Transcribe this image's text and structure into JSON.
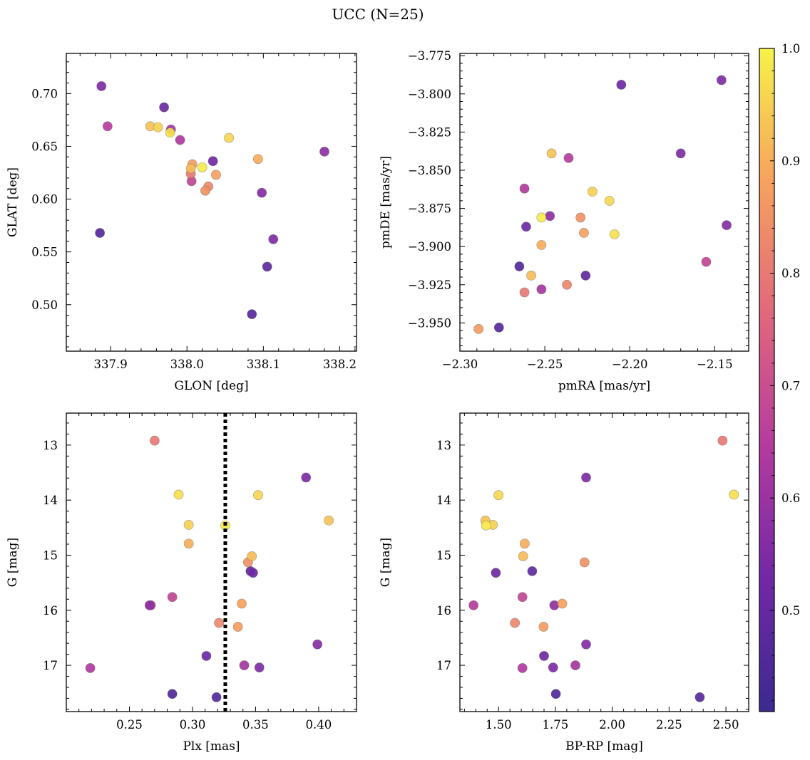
{
  "figure": {
    "title": "UCC (N=25)"
  },
  "colorbar": {
    "range": [
      0.41,
      1.0
    ],
    "ticks": [
      0.5,
      0.6,
      0.7,
      0.8,
      0.9,
      1.0
    ],
    "tick_labels": [
      "0.5",
      "0.6",
      "0.7",
      "0.8",
      "0.9",
      "1.0"
    ],
    "colormap": "plasma"
  },
  "stars": [
    {
      "glon": 337.888,
      "glat": 0.707,
      "pmra": -2.146,
      "pmde": -3.791,
      "plx": 0.39,
      "g": 13.59,
      "bprp": 1.885,
      "p": 0.55
    },
    {
      "glon": 337.896,
      "glat": 0.669,
      "pmra": -2.236,
      "pmde": -3.842,
      "plx": 0.267,
      "g": 15.91,
      "bprp": 1.39,
      "p": 0.65
    },
    {
      "glon": 337.97,
      "glat": 0.687,
      "pmra": -2.205,
      "pmde": -3.794,
      "plx": 0.311,
      "g": 16.83,
      "bprp": 1.7,
      "p": 0.52
    },
    {
      "glon": 337.886,
      "glat": 0.568,
      "pmra": -2.265,
      "pmde": -3.913,
      "plx": 0.284,
      "g": 17.52,
      "bprp": 1.752,
      "p": 0.46
    },
    {
      "glon": 338.085,
      "glat": 0.491,
      "pmra": -2.277,
      "pmde": -3.953,
      "plx": 0.319,
      "g": 17.58,
      "bprp": 2.385,
      "p": 0.47
    },
    {
      "glon": 338.105,
      "glat": 0.536,
      "pmra": -2.226,
      "pmde": -3.919,
      "plx": 0.346,
      "g": 15.29,
      "bprp": 1.648,
      "p": 0.49
    },
    {
      "glon": 338.034,
      "glat": 0.636,
      "pmra": -2.261,
      "pmde": -3.887,
      "plx": 0.348,
      "g": 15.32,
      "bprp": 1.488,
      "p": 0.52
    },
    {
      "glon": 338.098,
      "glat": 0.606,
      "pmra": -2.143,
      "pmde": -3.886,
      "plx": 0.399,
      "g": 16.62,
      "bprp": 1.885,
      "p": 0.56
    },
    {
      "glon": 338.113,
      "glat": 0.562,
      "pmra": -2.17,
      "pmde": -3.839,
      "plx": 0.353,
      "g": 17.04,
      "bprp": 1.74,
      "p": 0.55
    },
    {
      "glon": 338.18,
      "glat": 0.645,
      "pmra": -2.247,
      "pmde": -3.88,
      "plx": 0.266,
      "g": 15.91,
      "bprp": 1.745,
      "p": 0.58
    },
    {
      "glon": 337.979,
      "glat": 0.666,
      "pmra": -2.252,
      "pmde": -3.928,
      "plx": 0.341,
      "g": 17.0,
      "bprp": 1.838,
      "p": 0.62
    },
    {
      "glon": 337.991,
      "glat": 0.656,
      "pmra": -2.262,
      "pmde": -3.862,
      "plx": 0.219,
      "g": 17.05,
      "bprp": 1.605,
      "p": 0.64
    },
    {
      "glon": 338.006,
      "glat": 0.617,
      "pmra": -2.155,
      "pmde": -3.91,
      "plx": 0.284,
      "g": 15.76,
      "bprp": 1.605,
      "p": 0.68
    },
    {
      "glon": 338.005,
      "glat": 0.624,
      "pmra": -2.262,
      "pmde": -3.93,
      "plx": 0.27,
      "g": 12.92,
      "bprp": 2.485,
      "p": 0.8
    },
    {
      "glon": 338.028,
      "glat": 0.612,
      "pmra": -2.237,
      "pmde": -3.925,
      "plx": 0.321,
      "g": 16.23,
      "bprp": 1.572,
      "p": 0.83
    },
    {
      "glon": 338.024,
      "glat": 0.608,
      "pmra": -2.229,
      "pmde": -3.881,
      "plx": 0.344,
      "g": 15.13,
      "bprp": 1.878,
      "p": 0.85
    },
    {
      "glon": 338.007,
      "glat": 0.633,
      "pmra": -2.289,
      "pmde": -3.954,
      "plx": 0.336,
      "g": 16.3,
      "bprp": 1.698,
      "p": 0.87
    },
    {
      "glon": 338.038,
      "glat": 0.623,
      "pmra": -2.227,
      "pmde": -3.891,
      "plx": 0.339,
      "g": 15.88,
      "bprp": 1.78,
      "p": 0.88
    },
    {
      "glon": 338.093,
      "glat": 0.638,
      "pmra": -2.252,
      "pmde": -3.899,
      "plx": 0.297,
      "g": 14.79,
      "bprp": 1.615,
      "p": 0.9
    },
    {
      "glon": 338.005,
      "glat": 0.629,
      "pmra": -2.258,
      "pmde": -3.919,
      "plx": 0.347,
      "g": 15.02,
      "bprp": 1.608,
      "p": 0.92
    },
    {
      "glon": 337.952,
      "glat": 0.669,
      "pmra": -2.246,
      "pmde": -3.839,
      "plx": 0.408,
      "g": 14.37,
      "bprp": 1.442,
      "p": 0.93
    },
    {
      "glon": 337.962,
      "glat": 0.668,
      "pmra": -2.222,
      "pmde": -3.864,
      "plx": 0.297,
      "g": 14.45,
      "bprp": 1.475,
      "p": 0.95
    },
    {
      "glon": 338.055,
      "glat": 0.658,
      "pmra": -2.212,
      "pmde": -3.87,
      "plx": 0.352,
      "g": 13.91,
      "bprp": 1.5,
      "p": 0.96
    },
    {
      "glon": 337.978,
      "glat": 0.663,
      "pmra": -2.209,
      "pmde": -3.892,
      "plx": 0.289,
      "g": 13.9,
      "bprp": 2.535,
      "p": 0.97
    },
    {
      "glon": 338.02,
      "glat": 0.63,
      "pmra": -2.252,
      "pmde": -3.881,
      "plx": 0.326,
      "g": 14.46,
      "bprp": 1.445,
      "p": 0.99
    }
  ],
  "chart_data": [
    {
      "type": "scatter",
      "xlabel": "GLON [deg]",
      "ylabel": "GLAT [deg]",
      "xlim": [
        337.842,
        338.222
      ],
      "ylim": [
        0.456,
        0.738
      ],
      "x_key": "glon",
      "y_key": "glat",
      "invert_y": false,
      "xticks": [
        337.9,
        338.0,
        338.1,
        338.2
      ],
      "xtick_labels": [
        "337.9",
        "338.0",
        "338.1",
        "338.2"
      ],
      "yticks": [
        0.5,
        0.55,
        0.6,
        0.65,
        0.7
      ],
      "ytick_labels": [
        "0.50",
        "0.55",
        "0.60",
        "0.65",
        "0.70"
      ]
    },
    {
      "type": "scatter",
      "xlabel": "pmRA [mas/yr]",
      "ylabel": "pmDE [mas/yr]",
      "xlim": [
        -2.3,
        -2.13
      ],
      "ylim": [
        -3.9685,
        -3.7735
      ],
      "x_key": "pmra",
      "y_key": "pmde",
      "invert_y": false,
      "xticks": [
        -2.3,
        -2.25,
        -2.2,
        -2.15
      ],
      "xtick_labels": [
        "−2.30",
        "−2.25",
        "−2.20",
        "−2.15"
      ],
      "yticks": [
        -3.95,
        -3.925,
        -3.9,
        -3.875,
        -3.85,
        -3.825,
        -3.8,
        -3.775
      ],
      "ytick_labels": [
        "−3.950",
        "−3.925",
        "−3.900",
        "−3.875",
        "−3.850",
        "−3.825",
        "−3.800",
        "−3.775"
      ]
    },
    {
      "type": "scatter",
      "xlabel": "Plx [mas]",
      "ylabel": "G [mag]",
      "xlim": [
        0.2,
        0.43
      ],
      "ylim": [
        12.42,
        17.84
      ],
      "x_key": "plx",
      "y_key": "g",
      "invert_y": true,
      "vline": 0.326,
      "xticks": [
        0.25,
        0.3,
        0.35,
        0.4
      ],
      "xtick_labels": [
        "0.25",
        "0.30",
        "0.35",
        "0.40"
      ],
      "yticks": [
        13,
        14,
        15,
        16,
        17
      ],
      "ytick_labels": [
        "13",
        "14",
        "15",
        "16",
        "17"
      ]
    },
    {
      "type": "scatter",
      "xlabel": "BP-RP [mag]",
      "ylabel": "G [mag]",
      "xlim": [
        1.33,
        2.6
      ],
      "ylim": [
        12.42,
        17.84
      ],
      "x_key": "bprp",
      "y_key": "g",
      "invert_y": true,
      "xticks": [
        1.5,
        1.75,
        2.0,
        2.25,
        2.5
      ],
      "xtick_labels": [
        "1.50",
        "1.75",
        "2.00",
        "2.25",
        "2.50"
      ],
      "yticks": [
        13,
        14,
        15,
        16,
        17
      ],
      "ytick_labels": [
        "13",
        "14",
        "15",
        "16",
        "17"
      ]
    }
  ]
}
